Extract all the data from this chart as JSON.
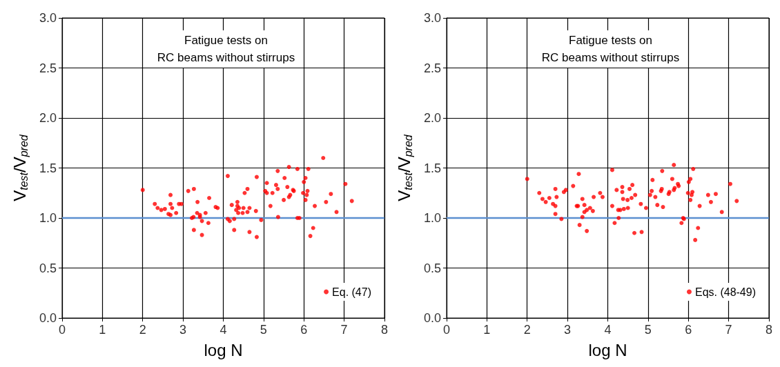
{
  "chart_data": [
    {
      "type": "scatter",
      "title": "Fatigue tests on\nRC beams without stirrups",
      "xlabel": "log N",
      "ylabel": "V$_{test}$/V$_{pred}$",
      "xlim": [
        0,
        8
      ],
      "xticks": [
        0,
        1,
        2,
        3,
        4,
        5,
        6,
        7,
        8
      ],
      "ylim": [
        0,
        3
      ],
      "yticks": [
        {
          "value": 0,
          "label": "0.0"
        },
        {
          "value": 0.5,
          "label": "0.5"
        },
        {
          "value": 1,
          "label": "1.0"
        },
        {
          "value": 1.5,
          "label": "1.5"
        },
        {
          "value": 2,
          "label": "2.0"
        },
        {
          "value": 2.5,
          "label": "2.5"
        },
        {
          "value": 3,
          "label": "3.0"
        }
      ],
      "grid": true,
      "legend": "bottom right",
      "marker": "circle",
      "ref_lines": [
        {
          "axis": "y",
          "value": 1,
          "color": "#5b8fd0"
        }
      ],
      "series": [
        {
          "name": "Eq. (47)",
          "color": "#ff0000",
          "x": [
            2.0,
            2.3,
            2.37,
            2.46,
            2.55,
            2.64,
            2.69,
            2.69,
            2.69,
            2.73,
            2.83,
            2.9,
            2.96,
            3.13,
            3.27,
            3.36,
            3.65,
            3.35,
            3.22,
            3.26,
            3.42,
            3.42,
            3.56,
            3.81,
            3.86,
            3.47,
            3.63,
            3.27,
            3.47,
            4.11,
            4.83,
            4.6,
            4.53,
            4.21,
            4.35,
            4.35,
            4.39,
            4.32,
            4.37,
            4.48,
            4.5,
            4.6,
            4.65,
            4.81,
            4.11,
            4.16,
            4.27,
            4.94,
            4.27,
            4.65,
            4.83,
            6.48,
            5.63,
            5.35,
            5.84,
            6.11,
            5.52,
            6.04,
            6.0,
            5.08,
            5.31,
            5.35,
            5.59,
            5.73,
            5.75,
            5.04,
            5.08,
            5.22,
            5.66,
            5.63,
            5.5,
            5.98,
            6.09,
            6.07,
            6.04,
            5.17,
            6.27,
            7.03,
            6.67,
            6.55,
            7.19,
            6.81,
            5.36,
            5.84,
            5.89,
            6.23,
            6.16
          ],
          "values": [
            1.28,
            1.14,
            1.1,
            1.08,
            1.09,
            1.04,
            1.03,
            1.23,
            1.14,
            1.1,
            1.05,
            1.14,
            1.14,
            1.27,
            1.29,
            1.16,
            1.2,
            1.05,
            1.0,
            1.01,
            1.01,
            1.03,
            1.05,
            1.11,
            1.1,
            0.97,
            0.95,
            0.88,
            0.83,
            1.42,
            1.41,
            1.29,
            1.25,
            1.13,
            1.16,
            1.12,
            1.1,
            1.08,
            1.05,
            1.05,
            1.1,
            1.06,
            1.1,
            1.07,
            0.99,
            0.97,
            0.99,
            0.98,
            0.88,
            0.86,
            0.81,
            1.6,
            1.51,
            1.47,
            1.49,
            1.49,
            1.4,
            1.4,
            1.36,
            1.35,
            1.33,
            1.29,
            1.31,
            1.28,
            1.27,
            1.27,
            1.25,
            1.25,
            1.23,
            1.21,
            1.18,
            1.25,
            1.27,
            1.23,
            1.18,
            1.12,
            1.12,
            1.34,
            1.24,
            1.16,
            1.17,
            1.06,
            1.01,
            1.0,
            1.0,
            0.9,
            0.82
          ]
        }
      ]
    },
    {
      "type": "scatter",
      "title": "Fatigue tests on\nRC beams without stirrups",
      "xlabel": "log N",
      "ylabel": "V$_{test}$/V$_{pred}$",
      "xlim": [
        0,
        8
      ],
      "xticks": [
        0,
        1,
        2,
        3,
        4,
        5,
        6,
        7,
        8
      ],
      "ylim": [
        0,
        3
      ],
      "yticks": [
        {
          "value": 0,
          "label": "0.0"
        },
        {
          "value": 0.5,
          "label": "0.5"
        },
        {
          "value": 1,
          "label": "1.0"
        },
        {
          "value": 1.5,
          "label": "1.5"
        },
        {
          "value": 2,
          "label": "2.0"
        },
        {
          "value": 2.5,
          "label": "2.5"
        },
        {
          "value": 3,
          "label": "3.0"
        }
      ],
      "grid": true,
      "legend": "bottom right",
      "marker": "circle",
      "ref_lines": [
        {
          "axis": "y",
          "value": 1,
          "color": "#5b8fd0"
        }
      ],
      "series": [
        {
          "name": "Eqs. (48-49)",
          "color": "#ff0000",
          "x": [
            2.0,
            2.3,
            2.38,
            2.46,
            2.55,
            2.64,
            2.7,
            2.7,
            2.73,
            2.7,
            2.85,
            2.91,
            2.96,
            3.14,
            3.28,
            3.23,
            3.26,
            3.37,
            3.42,
            3.42,
            3.48,
            3.56,
            3.63,
            3.65,
            3.81,
            3.87,
            3.37,
            3.3,
            3.48,
            4.11,
            4.22,
            4.36,
            4.36,
            4.38,
            4.11,
            4.26,
            4.31,
            4.4,
            4.27,
            4.17,
            4.49,
            4.54,
            4.61,
            4.59,
            4.68,
            4.5,
            4.82,
            4.95,
            4.66,
            4.84,
            5.64,
            5.35,
            6.12,
            5.11,
            5.6,
            6.05,
            6.01,
            5.34,
            5.32,
            5.09,
            5.05,
            5.18,
            5.74,
            5.76,
            5.66,
            5.64,
            5.53,
            5.51,
            5.99,
            6.1,
            6.08,
            6.05,
            5.23,
            5.37,
            6.28,
            6.49,
            6.68,
            6.56,
            7.04,
            7.2,
            6.83,
            5.87,
            5.89,
            5.83,
            6.24,
            6.17
          ],
          "values": [
            1.39,
            1.25,
            1.19,
            1.16,
            1.2,
            1.14,
            1.12,
            1.29,
            1.21,
            1.04,
            0.99,
            1.26,
            1.28,
            1.32,
            1.44,
            1.12,
            1.12,
            1.19,
            1.13,
            1.06,
            1.08,
            1.1,
            1.07,
            1.21,
            1.25,
            1.21,
            1.01,
            0.93,
            0.87,
            1.48,
            1.28,
            1.31,
            1.26,
            1.19,
            1.12,
            1.08,
            1.08,
            1.09,
            1.0,
            0.95,
            1.18,
            1.29,
            1.33,
            1.2,
            1.23,
            1.1,
            1.14,
            1.1,
            0.85,
            0.86,
            1.53,
            1.47,
            1.49,
            1.38,
            1.39,
            1.39,
            1.36,
            1.29,
            1.27,
            1.27,
            1.23,
            1.21,
            1.34,
            1.32,
            1.3,
            1.28,
            1.26,
            1.24,
            1.25,
            1.26,
            1.23,
            1.18,
            1.13,
            1.11,
            1.12,
            1.23,
            1.24,
            1.16,
            1.34,
            1.17,
            1.06,
            1.0,
            0.99,
            0.95,
            0.9,
            0.78
          ]
        }
      ]
    }
  ]
}
